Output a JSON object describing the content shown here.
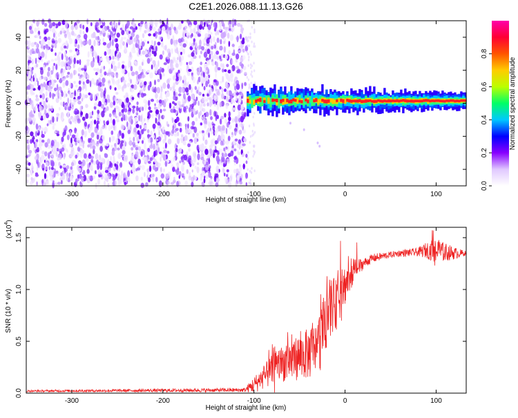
{
  "title": "C2E1.2026.088.11.13.G26",
  "chart_data": [
    {
      "type": "heatmap",
      "xlabel": "Height of straight line (km)",
      "ylabel": "Frequency (Hz)",
      "xlim": [
        -350,
        133
      ],
      "ylim": [
        -50,
        50
      ],
      "xticks": [
        -300,
        -200,
        -100,
        0,
        100
      ],
      "yticks": [
        -40,
        -20,
        0,
        20,
        40
      ],
      "colorbar": {
        "label": "Normalized spectral amplitude",
        "range": [
          0,
          1
        ],
        "ticks": [
          "0.0",
          "0.2",
          "0.4",
          "0.6",
          "0.8"
        ],
        "colors": [
          "#ffffff",
          "#e0c8ff",
          "#8800ff",
          "#0000ff",
          "#00c8ff",
          "#00ff66",
          "#bbff00",
          "#ffcc00",
          "#ff5500",
          "#ff0033",
          "#ff00aa"
        ]
      },
      "regions": [
        {
          "x_range": [
            -350,
            -108
          ],
          "f_range": [
            -50,
            50
          ],
          "amplitude": "low",
          "pattern": "noise"
        },
        {
          "x_range": [
            -108,
            133
          ],
          "f_center": 1.5,
          "f_halfwidth": 2.5,
          "amplitude": "high",
          "pattern": "signal band"
        }
      ]
    },
    {
      "type": "line",
      "xlabel": "Height of straight line (km)",
      "ylabel": "SNR (10 * v/v)",
      "yscale_label": "(x10",
      "yscale_exp": "4",
      "xlim": [
        -350,
        133
      ],
      "ylim": [
        0,
        1.6
      ],
      "xticks": [
        -300,
        -200,
        -100,
        0,
        100
      ],
      "yticks": [
        0.0,
        0.5,
        1.0,
        1.5
      ],
      "ytick_labels": [
        "0.0",
        "0.5",
        "1.0",
        "1.5"
      ],
      "color": "#ee2222",
      "envelope": {
        "x": [
          -350,
          -110,
          -100,
          -90,
          -80,
          -70,
          -60,
          -50,
          -40,
          -30,
          -25,
          -20,
          -15,
          -10,
          -5,
          0,
          5,
          10,
          20,
          30,
          40,
          60,
          80,
          90,
          100,
          110,
          120,
          133
        ],
        "y": [
          0.02,
          0.03,
          0.08,
          0.15,
          0.22,
          0.28,
          0.32,
          0.35,
          0.38,
          0.45,
          0.6,
          0.75,
          0.85,
          0.85,
          0.95,
          1.05,
          1.12,
          1.18,
          1.25,
          1.3,
          1.32,
          1.35,
          1.36,
          1.38,
          1.37,
          1.36,
          1.35,
          1.35
        ]
      },
      "noise_amplitude": {
        "x": [
          -350,
          -110,
          -100,
          -80,
          -60,
          -40,
          -20,
          0,
          20,
          50,
          80,
          100,
          133
        ],
        "a": [
          0.01,
          0.02,
          0.08,
          0.15,
          0.2,
          0.25,
          0.3,
          0.2,
          0.05,
          0.03,
          0.04,
          0.12,
          0.02
        ]
      }
    }
  ]
}
